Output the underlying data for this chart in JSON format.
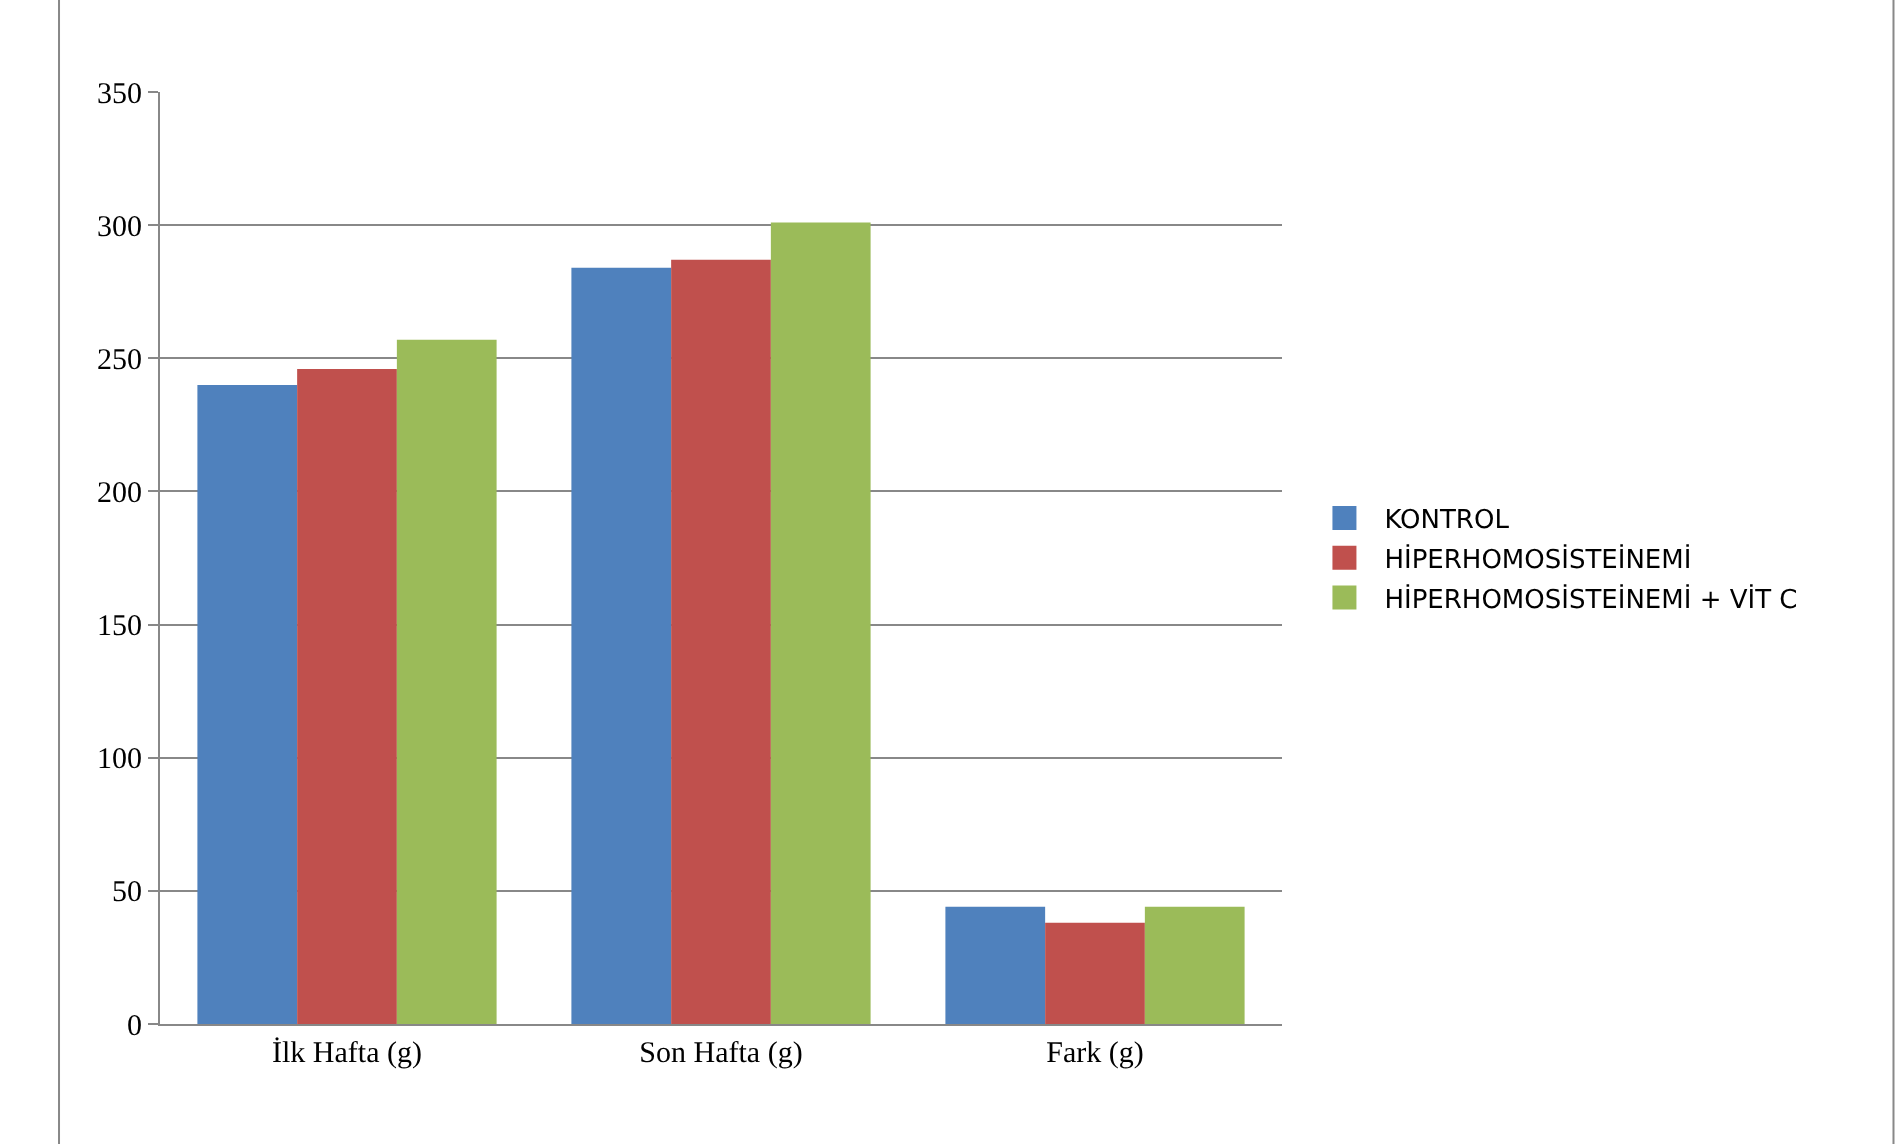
{
  "chart_data": {
    "type": "bar",
    "categories": [
      "İlk Hafta (g)",
      "Son Hafta (g)",
      "Fark (g)"
    ],
    "series": [
      {
        "name": "KONTROL",
        "color": "#4f81bd",
        "values": [
          240,
          284,
          44
        ]
      },
      {
        "name": "HİPERHOMOSİSTEİNEMİ",
        "color": "#c0504d",
        "values": [
          246,
          287,
          38
        ]
      },
      {
        "name": "HİPERHOMOSİSTEİNEMİ + VİT C",
        "color": "#9bbb59",
        "values": [
          257,
          301,
          44
        ]
      }
    ],
    "ylim": [
      0,
      350
    ],
    "yticks": [
      0,
      50,
      100,
      150,
      200,
      250,
      300,
      350
    ],
    "grid": "y",
    "legend": "right"
  }
}
